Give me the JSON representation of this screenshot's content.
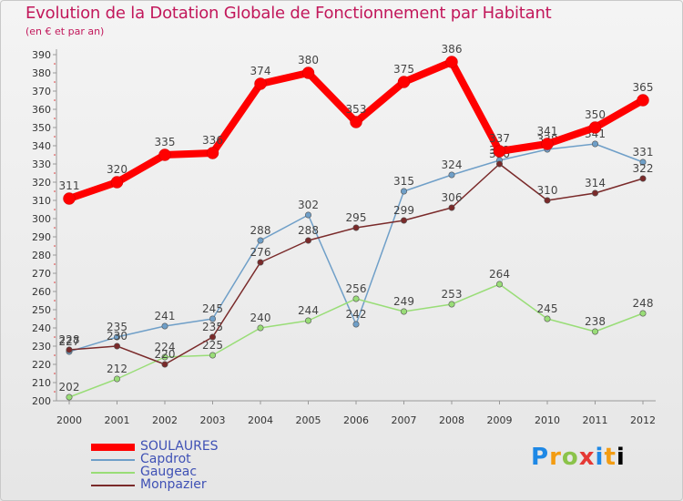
{
  "title": "Evolution de la Dotation Globale de Fonctionnement par Habitant",
  "subtitle": "(en € et par an)",
  "logo": [
    "P",
    "r",
    "o",
    "x",
    "i",
    "t",
    "i"
  ],
  "chart_data": {
    "type": "line",
    "x": [
      "2000",
      "2001",
      "2002",
      "2003",
      "2004",
      "2005",
      "2006",
      "2007",
      "2008",
      "2009",
      "2010",
      "2011",
      "2012"
    ],
    "ylim": [
      200,
      390
    ],
    "ytick_step": 10,
    "grid": false,
    "legend_position": "bottom-left",
    "series": [
      {
        "name": "SOULAURES",
        "color": "#ff0000",
        "values": [
          311,
          320,
          335,
          336,
          374,
          380,
          353,
          375,
          386,
          337,
          341,
          350,
          365
        ]
      },
      {
        "name": "Capdrot",
        "color": "#6f9fc8",
        "values": [
          227,
          235,
          241,
          245,
          288,
          302,
          242,
          315,
          324,
          332,
          338,
          341,
          331
        ]
      },
      {
        "name": "Gaugeac",
        "color": "#99dd77",
        "values": [
          202,
          212,
          224,
          225,
          240,
          244,
          256,
          249,
          253,
          264,
          245,
          238,
          248
        ]
      },
      {
        "name": "Monpazier",
        "color": "#7a2a2a",
        "values": [
          228,
          230,
          220,
          235,
          276,
          288,
          295,
          299,
          306,
          330,
          310,
          314,
          322
        ]
      }
    ]
  }
}
